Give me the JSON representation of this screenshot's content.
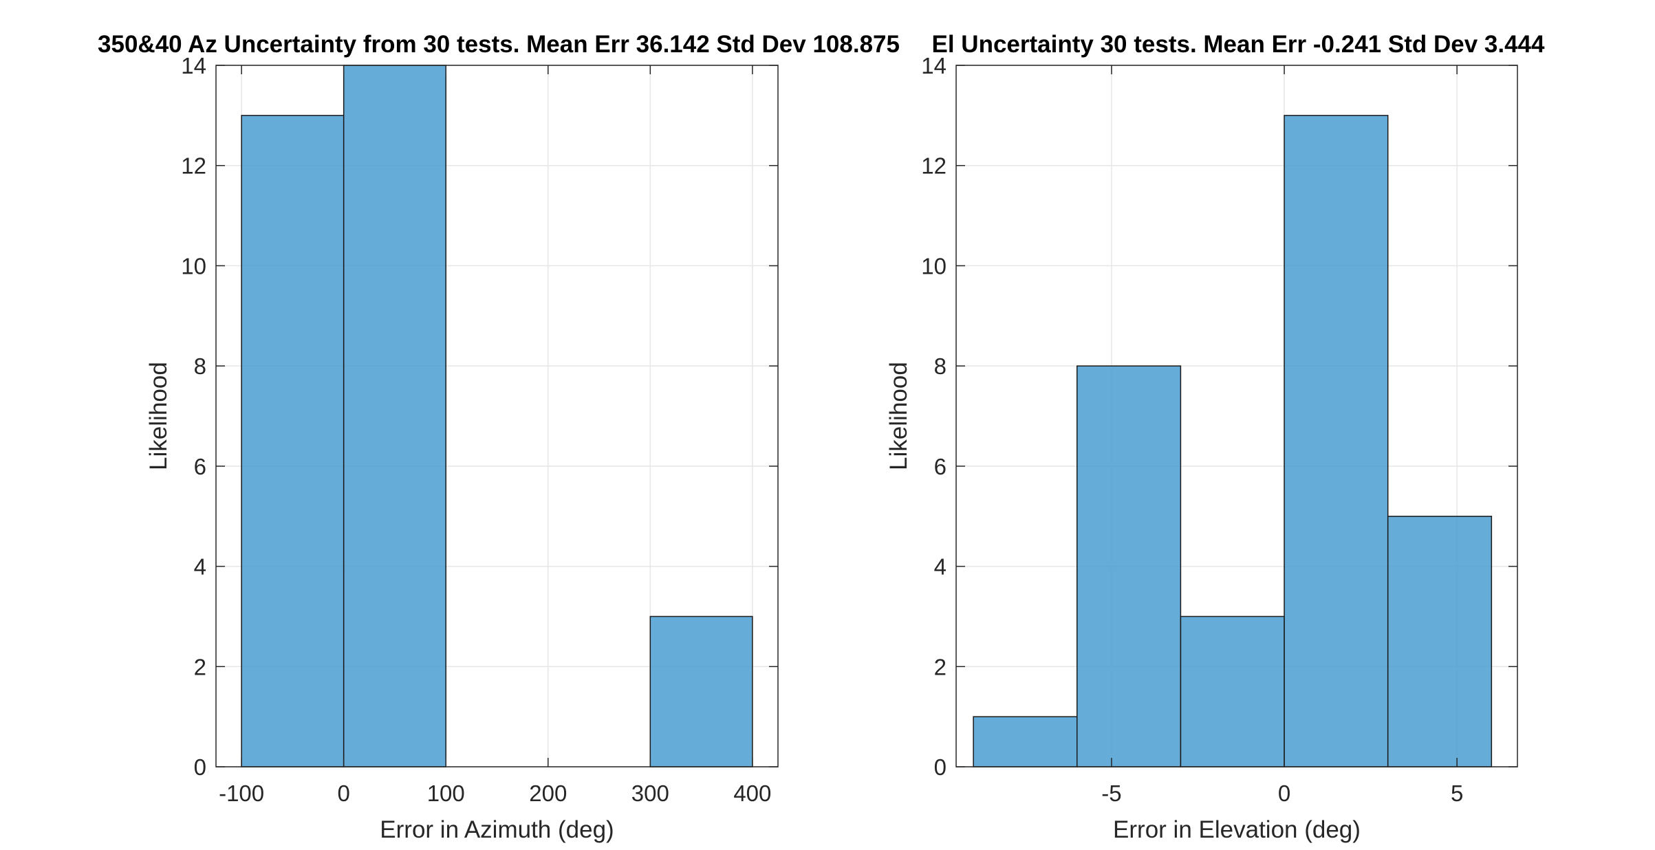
{
  "chart_data": [
    {
      "type": "bar",
      "title": "350&40 Az Uncertainty from 30 tests. Mean Err 36.142 Std Dev 108.875",
      "xlabel": "Error in Azimuth (deg)",
      "ylabel": "Likelihood",
      "xlim": [
        -125,
        425
      ],
      "ylim": [
        0,
        14
      ],
      "xticks": [
        -100,
        0,
        100,
        200,
        300,
        400
      ],
      "yticks": [
        0,
        2,
        4,
        6,
        8,
        10,
        12,
        14
      ],
      "grid": true,
      "bins": [
        {
          "x0": -100,
          "x1": 0,
          "count": 13
        },
        {
          "x0": 0,
          "x1": 100,
          "count": 14
        },
        {
          "x0": 100,
          "x1": 200,
          "count": 0
        },
        {
          "x0": 200,
          "x1": 300,
          "count": 0
        },
        {
          "x0": 300,
          "x1": 400,
          "count": 3
        }
      ]
    },
    {
      "type": "bar",
      "title": "El Uncertainty 30 tests. Mean Err -0.241 Std Dev 3.444",
      "xlabel": "Error in Elevation (deg)",
      "ylabel": "Likelihood",
      "xlim": [
        -9.5,
        6.75
      ],
      "ylim": [
        0,
        14
      ],
      "xticks": [
        -5,
        0,
        5
      ],
      "yticks": [
        0,
        2,
        4,
        6,
        8,
        10,
        12,
        14
      ],
      "grid": true,
      "bins": [
        {
          "x0": -9,
          "x1": -6,
          "count": 1
        },
        {
          "x0": -6,
          "x1": -3,
          "count": 8
        },
        {
          "x0": -3,
          "x1": 0,
          "count": 3
        },
        {
          "x0": 0,
          "x1": 3,
          "count": 13
        },
        {
          "x0": 3,
          "x1": 6,
          "count": 5
        }
      ]
    }
  ],
  "colors": {
    "bar_fill": "#4b9dd2",
    "bar_edge": "#1a1a1a",
    "grid": "#e6e6e6",
    "axes": "#262626"
  }
}
